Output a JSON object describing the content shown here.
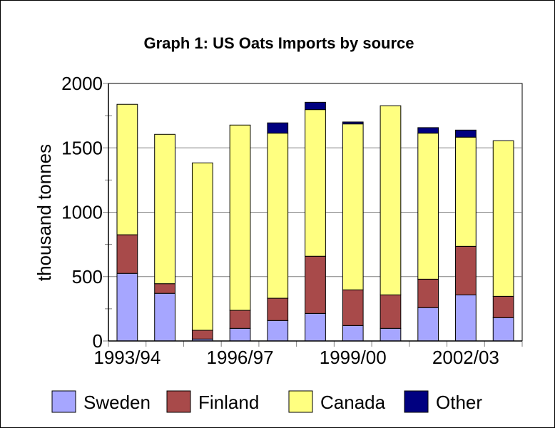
{
  "chart_data": {
    "type": "bar",
    "stacked": true,
    "title": "Graph 1: US Oats Imports by source",
    "xlabel": "",
    "ylabel": "thousand tonnes",
    "ylim": [
      0,
      2000
    ],
    "yticks": [
      0,
      500,
      1000,
      1500,
      2000
    ],
    "grid": true,
    "legend_position": "bottom",
    "categories": [
      "1993/94",
      "",
      "",
      "1996/97",
      "",
      "",
      "1999/00",
      "",
      "",
      "2002/03",
      ""
    ],
    "series": [
      {
        "name": "Sweden",
        "color": "#A6A6FF",
        "values": [
          525,
          370,
          15,
          98,
          159,
          214,
          120,
          98,
          259,
          358,
          181
        ]
      },
      {
        "name": "Finland",
        "color": "#A84A4A",
        "values": [
          300,
          75,
          68,
          140,
          173,
          444,
          277,
          260,
          221,
          377,
          166
        ]
      },
      {
        "name": "Canada",
        "color": "#FFFF80",
        "values": [
          1013,
          1160,
          1300,
          1439,
          1282,
          1139,
          1289,
          1469,
          1134,
          848,
          1208
        ]
      },
      {
        "name": "Other",
        "color": "#000080",
        "values": [
          0,
          0,
          0,
          0,
          80,
          57,
          15,
          0,
          43,
          55,
          0
        ]
      }
    ]
  }
}
